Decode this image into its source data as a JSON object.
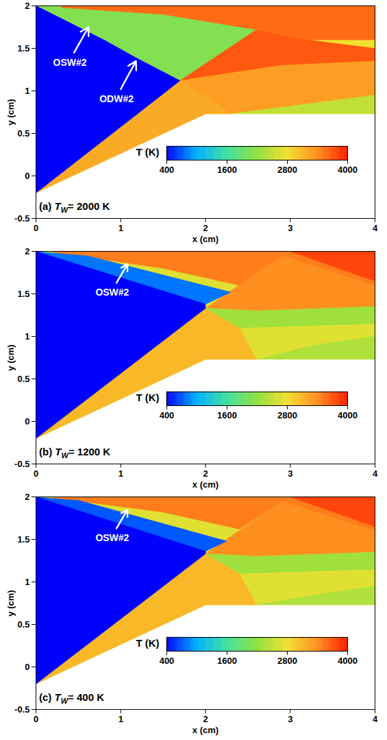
{
  "chart_data": [
    {
      "type": "heatmap",
      "label": {
        "prefix": "(a)",
        "symbol": "T",
        "subscript": "W",
        "suffix": "= 2000 K"
      },
      "x_label": "x (cm)",
      "y_label": "y (cm)",
      "xlim": [
        0,
        4
      ],
      "ylim": [
        -0.5,
        2
      ],
      "xticks": [
        0,
        1,
        2,
        3,
        4
      ],
      "yticks": [
        -0.5,
        0,
        0.5,
        1,
        1.5,
        2
      ],
      "colorbar": {
        "label": "T (K)",
        "range": [
          400,
          4000
        ],
        "ticks": [
          400,
          1600,
          2800,
          4000
        ],
        "colors": [
          "#0000ff",
          "#00b0ff",
          "#40e0a0",
          "#90e040",
          "#f0e030",
          "#ff9020",
          "#ff2000"
        ]
      },
      "regions": [
        {
          "T": 2800,
          "points": [
            [
              0,
              -0.2
            ],
            [
              2,
              0.73
            ],
            [
              4,
              0.73
            ],
            [
              4,
              2
            ],
            [
              0,
              2
            ]
          ]
        },
        {
          "T": 2100,
          "points": [
            [
              0,
              2
            ],
            [
              0.8,
              1.6
            ],
            [
              1.7,
              1.12
            ],
            [
              2.6,
              1.72
            ],
            [
              2.9,
              2
            ]
          ]
        },
        {
          "T": 3200,
          "points": [
            [
              0,
              -0.2
            ],
            [
              2,
              0.73
            ],
            [
              2.3,
              0.73
            ],
            [
              1.7,
              1.12
            ]
          ]
        },
        {
          "T": 3700,
          "points": [
            [
              1.7,
              1.12
            ],
            [
              2.6,
              1.72
            ],
            [
              3.2,
              1.6
            ],
            [
              4,
              1.5
            ],
            [
              4,
              1.35
            ],
            [
              2.9,
              1.3
            ]
          ]
        },
        {
          "T": 3300,
          "points": [
            [
              1.7,
              1.12
            ],
            [
              2.9,
              1.3
            ],
            [
              4,
              1.35
            ],
            [
              4,
              0.95
            ],
            [
              2.3,
              0.73
            ]
          ]
        },
        {
          "T": 2500,
          "points": [
            [
              2.3,
              0.73
            ],
            [
              4,
              0.95
            ],
            [
              4,
              0.73
            ]
          ]
        },
        {
          "T": 3600,
          "points": [
            [
              0.3,
              2
            ],
            [
              4,
              2
            ],
            [
              4,
              1.6
            ],
            [
              3.2,
              1.6
            ],
            [
              2.6,
              1.72
            ],
            [
              1.5,
              1.9
            ],
            [
              0.3,
              1.98
            ]
          ]
        },
        {
          "T": 400,
          "points": [
            [
              0,
              -0.2
            ],
            [
              1.7,
              1.12
            ],
            [
              1.2,
              1.38
            ],
            [
              0.8,
              1.6
            ],
            [
              0,
              2
            ]
          ]
        }
      ],
      "annotations": [
        {
          "text": "OSW#2",
          "x": 0.4,
          "y": 1.33,
          "arrow_from": [
            0.45,
            1.45
          ],
          "arrow_to": [
            0.62,
            1.75
          ]
        },
        {
          "text": "ODW#2",
          "x": 0.95,
          "y": 0.9,
          "arrow_from": [
            1.0,
            1.02
          ],
          "arrow_to": [
            1.18,
            1.35
          ]
        }
      ]
    },
    {
      "type": "heatmap",
      "label": {
        "prefix": "(b)",
        "symbol": "T",
        "subscript": "W",
        "suffix": "= 1200 K"
      },
      "x_label": "x (cm)",
      "y_label": "y (cm)",
      "xlim": [
        0,
        4
      ],
      "ylim": [
        -0.5,
        2
      ],
      "xticks": [
        0,
        1,
        2,
        3,
        4
      ],
      "yticks": [
        -0.5,
        0,
        0.5,
        1,
        1.5,
        2
      ],
      "colorbar": {
        "label": "T (K)",
        "range": [
          400,
          4000
        ],
        "ticks": [
          400,
          1600,
          2800,
          4000
        ],
        "colors": [
          "#0000ff",
          "#00b0ff",
          "#40e0a0",
          "#90e040",
          "#f0e030",
          "#ff9020",
          "#ff2000"
        ]
      },
      "regions": [
        {
          "T": 2700,
          "points": [
            [
              0,
              -0.2
            ],
            [
              2,
              0.73
            ],
            [
              4,
              0.73
            ],
            [
              4,
              2
            ],
            [
              0,
              2
            ]
          ]
        },
        {
          "T": 3100,
          "points": [
            [
              0,
              -0.2
            ],
            [
              2,
              0.73
            ],
            [
              2.6,
              0.73
            ],
            [
              2.4,
              1.1
            ],
            [
              2,
              1.33
            ]
          ]
        },
        {
          "T": 3400,
          "points": [
            [
              2,
              1.33
            ],
            [
              2.9,
              1.95
            ],
            [
              4,
              1.6
            ],
            [
              4,
              1.35
            ],
            [
              2.6,
              1.3
            ]
          ]
        },
        {
          "T": 2300,
          "points": [
            [
              2,
              1.33
            ],
            [
              2.6,
              1.3
            ],
            [
              4,
              1.35
            ],
            [
              4,
              1.15
            ],
            [
              2.4,
              1.1
            ]
          ]
        },
        {
          "T": 2400,
          "points": [
            [
              2.6,
              0.73
            ],
            [
              3.3,
              0.9
            ],
            [
              4,
              1.0
            ],
            [
              4,
              0.73
            ]
          ]
        },
        {
          "T": 3500,
          "points": [
            [
              0.2,
              2
            ],
            [
              4,
              2
            ],
            [
              4,
              1.6
            ],
            [
              2.9,
              1.95
            ],
            [
              2.4,
              1.6
            ],
            [
              1.5,
              1.8
            ],
            [
              0.2,
              1.99
            ]
          ]
        },
        {
          "T": 3800,
          "points": [
            [
              3,
              2
            ],
            [
              4,
              1.65
            ],
            [
              4,
              2
            ]
          ]
        },
        {
          "T": 800,
          "points": [
            [
              0,
              2
            ],
            [
              2,
              1.38
            ],
            [
              2.3,
              1.52
            ],
            [
              0.6,
              1.95
            ]
          ]
        },
        {
          "T": 400,
          "points": [
            [
              0,
              -0.2
            ],
            [
              2,
              1.33
            ],
            [
              2,
              1.38
            ],
            [
              0,
              2
            ]
          ]
        }
      ],
      "annotations": [
        {
          "text": "OSW#2",
          "x": 0.9,
          "y": 1.52,
          "arrow_from": [
            0.95,
            1.63
          ],
          "arrow_to": [
            1.08,
            1.85
          ]
        }
      ]
    },
    {
      "type": "heatmap",
      "label": {
        "prefix": "(c)",
        "symbol": "T",
        "subscript": "W",
        "suffix": "= 400 K"
      },
      "x_label": "x (cm)",
      "y_label": "y (cm)",
      "xlim": [
        0,
        4
      ],
      "ylim": [
        -0.5,
        2
      ],
      "xticks": [
        0,
        1,
        2,
        3,
        4
      ],
      "yticks": [
        -0.5,
        0,
        0.5,
        1,
        1.5,
        2
      ],
      "colorbar": {
        "label": "T (K)",
        "range": [
          400,
          4000
        ],
        "ticks": [
          400,
          1600,
          2800,
          4000
        ],
        "colors": [
          "#0000ff",
          "#00b0ff",
          "#40e0a0",
          "#90e040",
          "#f0e030",
          "#ff9020",
          "#ff2000"
        ]
      },
      "regions": [
        {
          "T": 2700,
          "points": [
            [
              0,
              -0.2
            ],
            [
              2,
              0.73
            ],
            [
              4,
              0.73
            ],
            [
              4,
              2
            ],
            [
              0,
              2
            ]
          ]
        },
        {
          "T": 3100,
          "points": [
            [
              0,
              -0.2
            ],
            [
              2,
              0.73
            ],
            [
              2.6,
              0.73
            ],
            [
              2.4,
              1.1
            ],
            [
              2,
              1.33
            ]
          ]
        },
        {
          "T": 3400,
          "points": [
            [
              2,
              1.33
            ],
            [
              2.9,
              1.95
            ],
            [
              4,
              1.6
            ],
            [
              4,
              1.35
            ],
            [
              2.6,
              1.3
            ]
          ]
        },
        {
          "T": 2300,
          "points": [
            [
              2,
              1.33
            ],
            [
              2.6,
              1.3
            ],
            [
              4,
              1.35
            ],
            [
              4,
              1.15
            ],
            [
              2.4,
              1.1
            ]
          ]
        },
        {
          "T": 2400,
          "points": [
            [
              2.6,
              0.73
            ],
            [
              3.3,
              0.85
            ],
            [
              4,
              0.95
            ],
            [
              4,
              0.73
            ]
          ]
        },
        {
          "T": 3500,
          "points": [
            [
              0.2,
              2
            ],
            [
              4,
              2
            ],
            [
              4,
              1.6
            ],
            [
              2.9,
              1.95
            ],
            [
              2.4,
              1.62
            ],
            [
              1.5,
              1.82
            ],
            [
              0.2,
              1.99
            ]
          ]
        },
        {
          "T": 3800,
          "points": [
            [
              3,
              2
            ],
            [
              4,
              1.65
            ],
            [
              4,
              2
            ]
          ]
        },
        {
          "T": 700,
          "points": [
            [
              0,
              2
            ],
            [
              2,
              1.36
            ],
            [
              2.25,
              1.48
            ],
            [
              0.5,
              1.96
            ]
          ]
        },
        {
          "T": 400,
          "points": [
            [
              0,
              -0.2
            ],
            [
              2,
              1.33
            ],
            [
              2,
              1.36
            ],
            [
              0,
              2
            ]
          ]
        }
      ],
      "annotations": [
        {
          "text": "OSW#2",
          "x": 0.9,
          "y": 1.52,
          "arrow_from": [
            0.95,
            1.63
          ],
          "arrow_to": [
            1.08,
            1.85
          ]
        }
      ]
    }
  ]
}
